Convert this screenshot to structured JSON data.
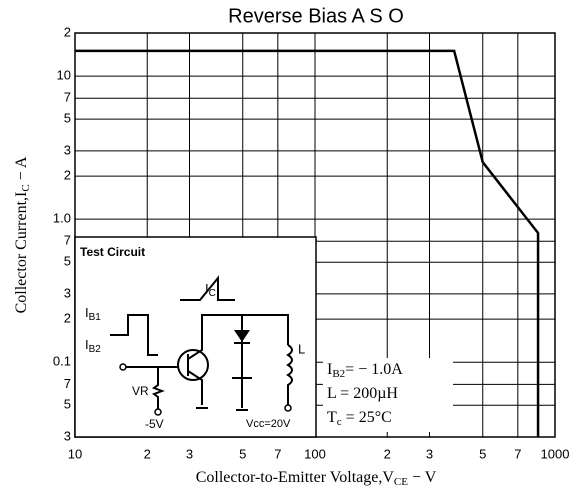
{
  "chart_data": {
    "type": "line",
    "title": "Reverse Bias A S O",
    "x_label": {
      "main": "Collector-to-Emitter Voltage,V",
      "sub": "CE",
      "rest": " − V"
    },
    "y_label": {
      "main": "Collector Current,I",
      "sub": "C",
      "rest": " − A"
    },
    "log_x": true,
    "log_y": true,
    "grid": true,
    "xlim": [
      10,
      1000
    ],
    "ylim": [
      0.03,
      20
    ],
    "xticks": [
      10,
      {
        "value": 20,
        "label": "2"
      },
      {
        "value": 30,
        "label": "3"
      },
      {
        "value": 50,
        "label": "5"
      },
      {
        "value": 70,
        "label": "7"
      },
      100,
      {
        "value": 200,
        "label": "2"
      },
      {
        "value": 300,
        "label": "3"
      },
      {
        "value": 500,
        "label": "5"
      },
      {
        "value": 700,
        "label": "7"
      },
      1000
    ],
    "yticks": [
      {
        "value": 0.03,
        "label": "3"
      },
      {
        "value": 0.05,
        "label": "5"
      },
      {
        "value": 0.07,
        "label": "7"
      },
      0.1,
      {
        "value": 0.2,
        "label": "2"
      },
      {
        "value": 0.3,
        "label": "3"
      },
      {
        "value": 0.5,
        "label": "5"
      },
      {
        "value": 0.7,
        "label": "7"
      },
      {
        "value": 1,
        "label": "1.0"
      },
      2,
      3,
      5,
      7,
      10,
      {
        "value": 20,
        "label": "2"
      }
    ],
    "series": [
      {
        "color": "#000000",
        "x": [
          10,
          380,
          500,
          850,
          850
        ],
        "values": [
          15,
          15,
          2.5,
          0.8,
          0.03
        ]
      }
    ],
    "annotations": [
      {
        "main": "I",
        "sub": "B2",
        "rest": "= − 1.0A"
      },
      {
        "main": "L = 200µH"
      },
      {
        "main": "T",
        "sub": "c",
        "rest": " = 25°C"
      }
    ],
    "test_circuit": {
      "title": "Test Circuit",
      "ic": {
        "main": "I",
        "sub": "C"
      },
      "ib1": {
        "main": "I",
        "sub": "B1"
      },
      "ib2": {
        "main": "I",
        "sub": "B2"
      },
      "vr": "VR",
      "vneg": "-5V",
      "vcc": "Vcc=20V",
      "l": "L"
    }
  }
}
